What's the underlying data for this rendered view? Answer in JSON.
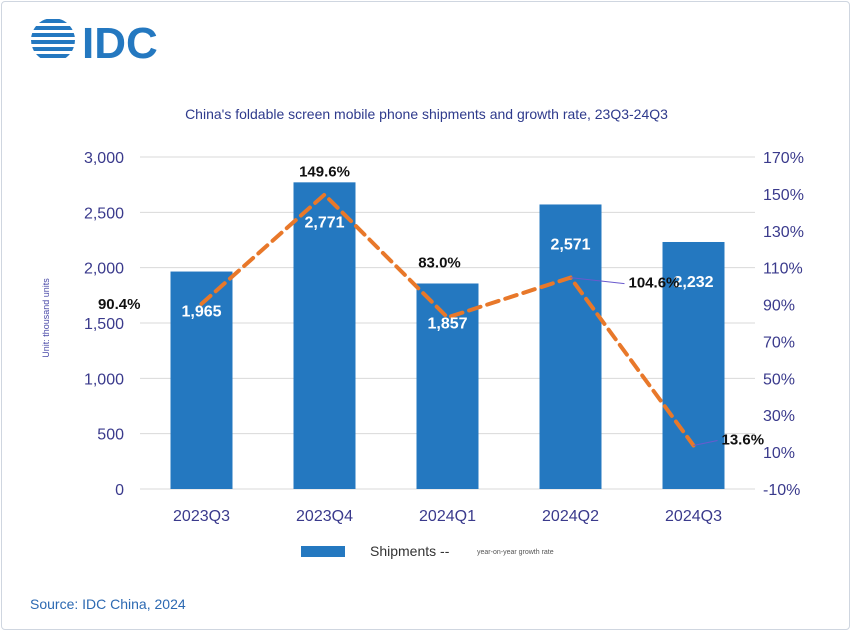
{
  "logo_text": "IDC",
  "source": "Source: IDC China, 2024",
  "chart_data": {
    "type": "bar",
    "title": "China's foldable screen mobile phone shipments and growth rate, 23Q3-24Q3",
    "ylabel": "Unit: thousand units",
    "categories": [
      "2023Q3",
      "2023Q4",
      "2024Q1",
      "2024Q2",
      "2024Q3"
    ],
    "ylim": [
      0,
      3000
    ],
    "y_ticks": [
      0,
      500,
      1000,
      1500,
      2000,
      2500,
      3000
    ],
    "y_tick_labels": [
      "0",
      "500",
      "1,000",
      "1,500",
      "2,000",
      "2,500",
      "3,000"
    ],
    "y2lim": [
      -10,
      170
    ],
    "y2_ticks": [
      -10,
      10,
      30,
      50,
      70,
      90,
      110,
      130,
      150,
      170
    ],
    "y2_tick_labels": [
      "-10%",
      "10%",
      "30%",
      "50%",
      "70%",
      "90%",
      "110%",
      "130%",
      "150%",
      "170%"
    ],
    "grid": true,
    "legend_position": "bottom",
    "series": [
      {
        "name": "Shipments --",
        "type": "bar",
        "color": "#2478c0",
        "values": [
          1965,
          2771,
          1857,
          2571,
          2232
        ],
        "labels": [
          "1,965",
          "2,771",
          "1,857",
          "2,571",
          "2,232"
        ]
      },
      {
        "name": "year-on-year growth rate",
        "type": "line",
        "axis": "right",
        "color": "#e8782a",
        "values": [
          90.4,
          149.6,
          83.0,
          104.6,
          13.6
        ],
        "labels": [
          "90.4%",
          "149.6%",
          "83.0%",
          "104.6%",
          "13.6%"
        ]
      }
    ]
  }
}
